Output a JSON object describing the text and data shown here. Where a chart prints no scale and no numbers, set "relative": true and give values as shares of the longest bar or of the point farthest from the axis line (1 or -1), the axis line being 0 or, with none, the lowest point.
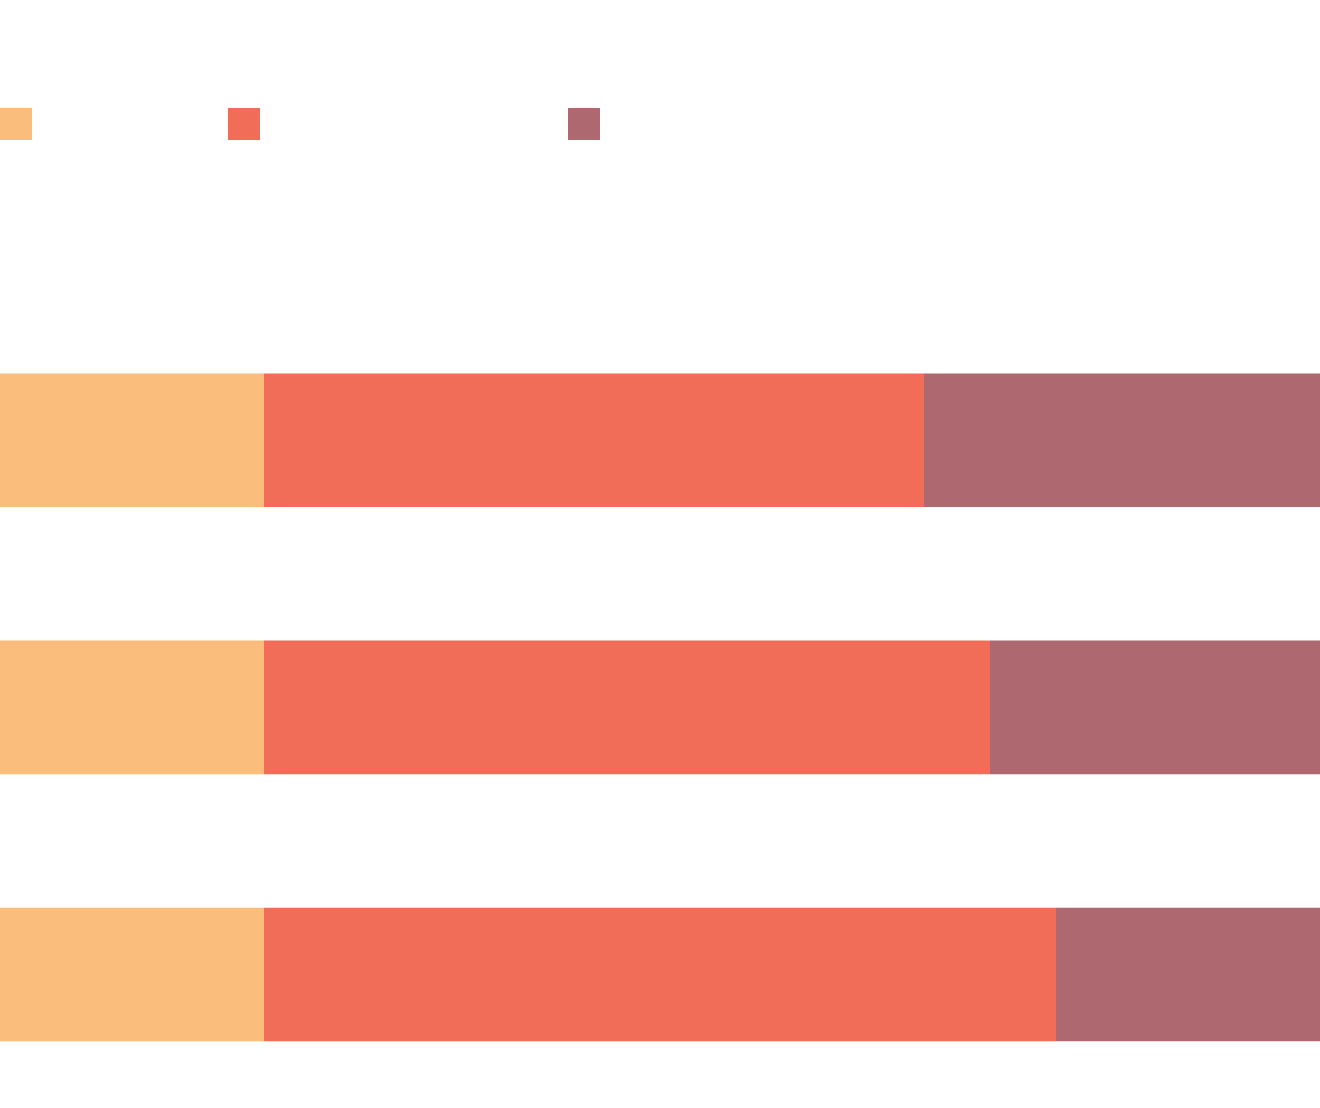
{
  "chart_data": {
    "type": "bar",
    "orientation": "horizontal",
    "stacked": true,
    "relative": true,
    "categories": [
      null,
      null,
      null
    ],
    "series": [
      {
        "color": "#fbbd7b",
        "values": [
          0.2,
          0.2,
          0.2
        ]
      },
      {
        "color": "#f26d58",
        "values": [
          0.5,
          0.55,
          0.6
        ]
      },
      {
        "color": "#ad6870",
        "values": [
          0.3,
          0.25,
          0.2
        ]
      }
    ]
  }
}
